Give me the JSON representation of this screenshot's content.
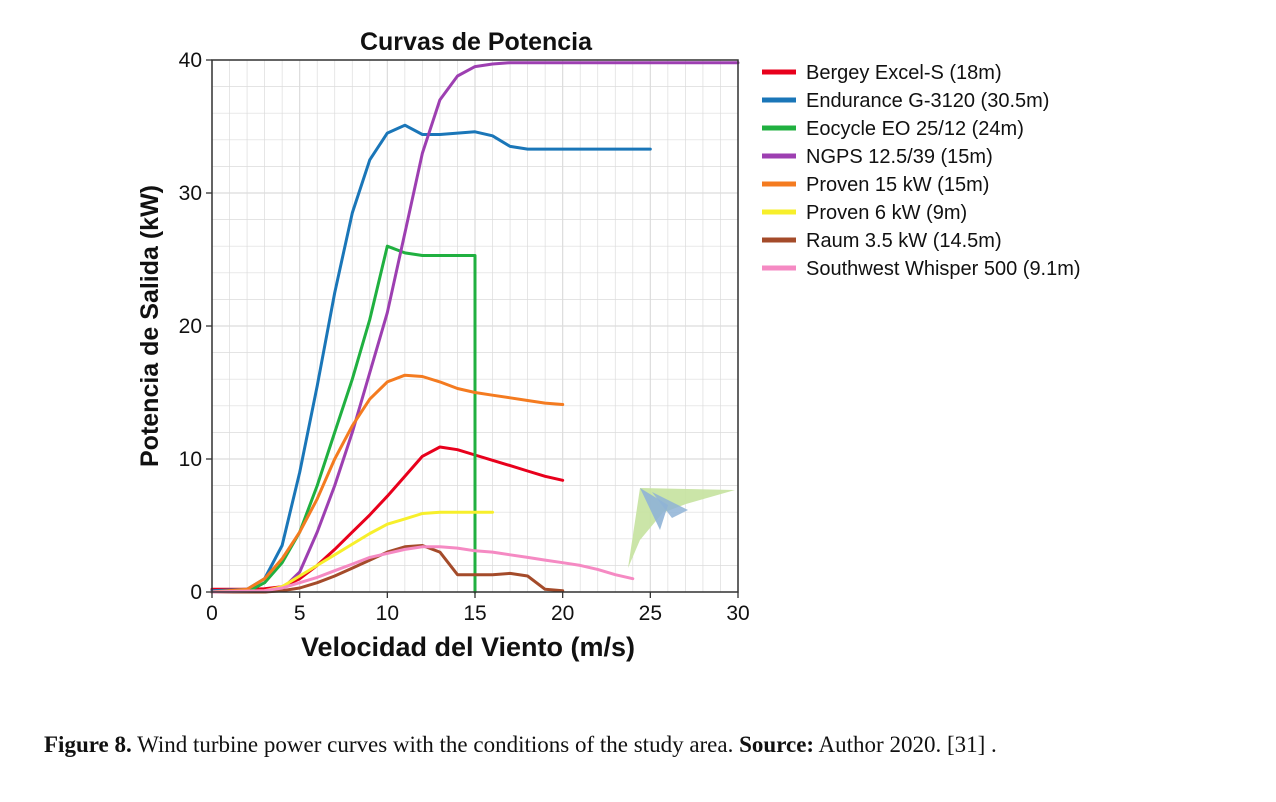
{
  "chart_data": {
    "type": "line",
    "title": "Curvas de Potencia",
    "xlabel": "Velocidad del Viento (m/s)",
    "ylabel": "Potencia de Salida (kW)",
    "xlim": [
      0,
      30
    ],
    "ylim": [
      0,
      40
    ],
    "xticks": [
      0,
      5,
      10,
      15,
      20,
      25,
      30
    ],
    "yticks": [
      0,
      10,
      20,
      30,
      40
    ],
    "grid": true,
    "legend_position": "right",
    "series": [
      {
        "name": "Bergey Excel-S (18m)",
        "color": "#e8001c",
        "points": [
          [
            0,
            0.2
          ],
          [
            2,
            0.2
          ],
          [
            3,
            0.25
          ],
          [
            4,
            0.4
          ],
          [
            5,
            1
          ],
          [
            6,
            2
          ],
          [
            7,
            3.2
          ],
          [
            8,
            4.5
          ],
          [
            9,
            5.8
          ],
          [
            10,
            7.2
          ],
          [
            11,
            8.7
          ],
          [
            12,
            10.2
          ],
          [
            13,
            10.9
          ],
          [
            14,
            10.7
          ],
          [
            15,
            10.3
          ],
          [
            16,
            9.9
          ],
          [
            17,
            9.5
          ],
          [
            18,
            9.1
          ],
          [
            19,
            8.7
          ],
          [
            20,
            8.4
          ]
        ]
      },
      {
        "name": "Endurance G-3120 (30.5m)",
        "color": "#1a76b8",
        "points": [
          [
            0,
            0.1
          ],
          [
            2,
            0.2
          ],
          [
            3,
            1
          ],
          [
            4,
            3.5
          ],
          [
            5,
            9
          ],
          [
            6,
            15.5
          ],
          [
            7,
            22.5
          ],
          [
            8,
            28.5
          ],
          [
            9,
            32.5
          ],
          [
            10,
            34.5
          ],
          [
            11,
            35.1
          ],
          [
            12,
            34.4
          ],
          [
            13,
            34.4
          ],
          [
            14,
            34.5
          ],
          [
            15,
            34.6
          ],
          [
            16,
            34.3
          ],
          [
            17,
            33.5
          ],
          [
            18,
            33.3
          ],
          [
            20,
            33.3
          ],
          [
            25,
            33.3
          ]
        ]
      },
      {
        "name": "Eocycle EO 25/12 (24m)",
        "color": "#20b040",
        "points": [
          [
            0,
            0
          ],
          [
            2,
            0
          ],
          [
            3,
            0.7
          ],
          [
            4,
            2.2
          ],
          [
            5,
            4.5
          ],
          [
            6,
            8
          ],
          [
            7,
            12
          ],
          [
            8,
            16
          ],
          [
            9,
            20.5
          ],
          [
            10,
            26
          ],
          [
            11,
            25.5
          ],
          [
            12,
            25.3
          ],
          [
            13,
            25.3
          ],
          [
            14,
            25.3
          ],
          [
            15,
            25.3
          ],
          [
            15,
            0
          ]
        ]
      },
      {
        "name": "NGPS 12.5/39 (15m)",
        "color": "#9d3fb1",
        "points": [
          [
            0,
            0
          ],
          [
            3,
            0
          ],
          [
            4,
            0.2
          ],
          [
            5,
            1.5
          ],
          [
            6,
            4.5
          ],
          [
            7,
            8
          ],
          [
            8,
            12
          ],
          [
            9,
            16.5
          ],
          [
            10,
            21
          ],
          [
            11,
            27
          ],
          [
            12,
            33
          ],
          [
            13,
            37
          ],
          [
            14,
            38.8
          ],
          [
            15,
            39.5
          ],
          [
            16,
            39.7
          ],
          [
            17,
            39.8
          ],
          [
            20,
            39.8
          ],
          [
            25,
            39.8
          ],
          [
            30,
            39.8
          ]
        ]
      },
      {
        "name": "Proven 15 kW (15m)",
        "color": "#f47b20",
        "points": [
          [
            0,
            0
          ],
          [
            2,
            0.2
          ],
          [
            3,
            1
          ],
          [
            4,
            2.5
          ],
          [
            5,
            4.5
          ],
          [
            6,
            7
          ],
          [
            7,
            10
          ],
          [
            8,
            12.5
          ],
          [
            9,
            14.5
          ],
          [
            10,
            15.8
          ],
          [
            11,
            16.3
          ],
          [
            12,
            16.2
          ],
          [
            13,
            15.8
          ],
          [
            14,
            15.3
          ],
          [
            15,
            15
          ],
          [
            16,
            14.8
          ],
          [
            17,
            14.6
          ],
          [
            18,
            14.4
          ],
          [
            19,
            14.2
          ],
          [
            20,
            14.1
          ]
        ]
      },
      {
        "name": "Proven 6 kW (9m)",
        "color": "#f7ef2b",
        "points": [
          [
            0,
            0
          ],
          [
            3,
            0.1
          ],
          [
            4,
            0.4
          ],
          [
            5,
            1.2
          ],
          [
            6,
            2
          ],
          [
            7,
            2.8
          ],
          [
            8,
            3.6
          ],
          [
            9,
            4.4
          ],
          [
            10,
            5.1
          ],
          [
            11,
            5.5
          ],
          [
            12,
            5.9
          ],
          [
            13,
            6
          ],
          [
            14,
            6
          ],
          [
            15,
            6
          ],
          [
            16,
            6
          ]
        ]
      },
      {
        "name": "Raum 3.5 kW (14.5m)",
        "color": "#a44b2a",
        "points": [
          [
            0,
            0
          ],
          [
            3,
            0
          ],
          [
            4,
            0.1
          ],
          [
            5,
            0.3
          ],
          [
            6,
            0.7
          ],
          [
            7,
            1.2
          ],
          [
            8,
            1.8
          ],
          [
            9,
            2.4
          ],
          [
            10,
            3
          ],
          [
            11,
            3.4
          ],
          [
            12,
            3.5
          ],
          [
            13,
            3
          ],
          [
            14,
            1.3
          ],
          [
            15,
            1.3
          ],
          [
            16,
            1.3
          ],
          [
            17,
            1.4
          ],
          [
            18,
            1.2
          ],
          [
            19,
            0.2
          ],
          [
            20,
            0.1
          ]
        ]
      },
      {
        "name": "Southwest Whisper 500 (9.1m)",
        "color": "#f58ac3",
        "points": [
          [
            0,
            0
          ],
          [
            3,
            0.1
          ],
          [
            4,
            0.3
          ],
          [
            5,
            0.7
          ],
          [
            6,
            1.1
          ],
          [
            7,
            1.6
          ],
          [
            8,
            2.1
          ],
          [
            9,
            2.6
          ],
          [
            10,
            2.9
          ],
          [
            11,
            3.2
          ],
          [
            12,
            3.4
          ],
          [
            13,
            3.4
          ],
          [
            14,
            3.3
          ],
          [
            15,
            3.1
          ],
          [
            16,
            3
          ],
          [
            17,
            2.8
          ],
          [
            18,
            2.6
          ],
          [
            19,
            2.4
          ],
          [
            20,
            2.2
          ],
          [
            21,
            2
          ],
          [
            22,
            1.7
          ],
          [
            23,
            1.3
          ],
          [
            24,
            1
          ]
        ]
      }
    ]
  },
  "caption": {
    "label": "Figure 8.",
    "text": " Wind turbine power curves with the conditions of the study area. ",
    "source_label": "Source:",
    "source_text": " Author 2020. [31] ."
  },
  "colors": {
    "grid": "#dcdcdc",
    "axis": "#333333",
    "text": "#111111",
    "logo_green": "#c5e29e",
    "logo_blue": "#8fb3d6"
  }
}
